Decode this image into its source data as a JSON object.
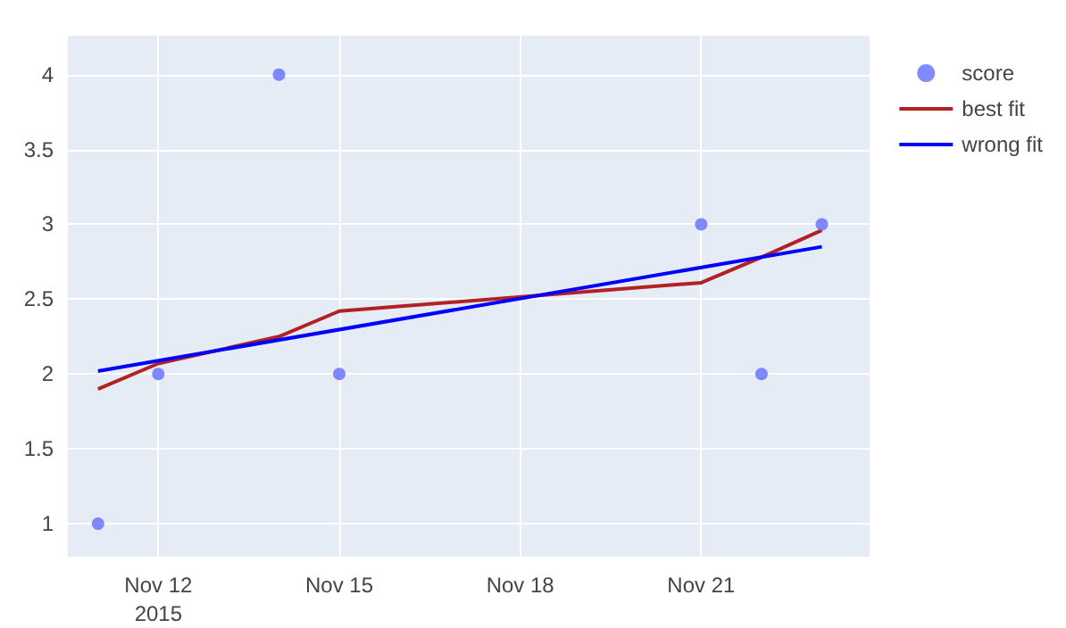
{
  "chart_data": {
    "type": "scatter",
    "x": [
      "2015-11-11",
      "2015-11-12",
      "2015-11-14",
      "2015-11-15",
      "2015-11-21",
      "2015-11-22",
      "2015-11-23"
    ],
    "series": [
      {
        "name": "score",
        "marker": "circle",
        "color": "#636efa",
        "values": [
          1,
          2,
          4,
          2,
          3,
          2,
          3
        ]
      },
      {
        "name": "best fit",
        "type": "line",
        "marker": "none",
        "color": "#b22222",
        "values": [
          1.9,
          2.07,
          2.25,
          2.42,
          2.61,
          2.78,
          2.96
        ]
      },
      {
        "name": "wrong fit",
        "type": "line",
        "marker": "none",
        "color": "#0000ff",
        "x": [
          "2015-11-11",
          "2015-11-23"
        ],
        "values": [
          2.02,
          2.85
        ]
      }
    ],
    "xlim": [
      "2015-11-10T12:00",
      "2015-11-23T19:00"
    ],
    "xticks": [
      {
        "value": "2015-11-12",
        "label": "Nov 12\n2015"
      },
      {
        "value": "2015-11-15",
        "label": "Nov 15"
      },
      {
        "value": "2015-11-18",
        "label": "Nov 18"
      },
      {
        "value": "2015-11-21",
        "label": "Nov 21"
      }
    ],
    "ylim": [
      0.78,
      4.26
    ],
    "yticks": [
      1,
      1.5,
      2,
      2.5,
      3,
      3.5,
      4
    ],
    "grid": true,
    "legend": "top right"
  }
}
